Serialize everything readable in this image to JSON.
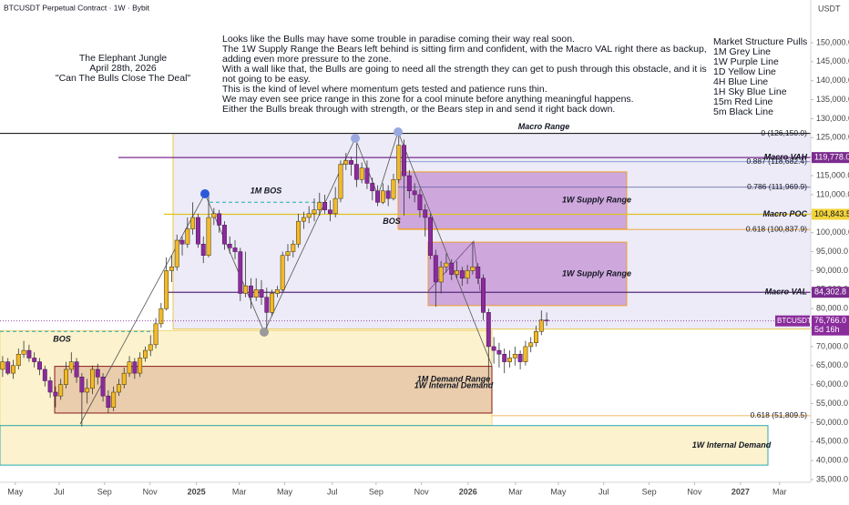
{
  "chart_data": {
    "type": "candlestick",
    "header": "BTCUSDT Perpetual Contract · 1W · Bybit",
    "currency": "USDT",
    "title_block": [
      "The Elephant Jungle",
      "April 28th, 2026",
      "\"Can The Bulls Close The Deal\""
    ],
    "commentary": [
      "Looks like the Bulls may have some trouble in paradise coming their way real soon.",
      "The 1W Supply Range the Bears left behind is sitting firm and confident, with the Macro VAL right there as backup,",
      "adding even more pressure to the zone.",
      "With a wall like that, the Bulls are going to need all the strength they can get to push through this obstacle, and it is",
      "not going to be easy.",
      "This is the kind of level where momentum gets tested and patience runs thin.",
      "We may even see price range in this zone for a cool minute before anything meaningful happens.",
      "Either the Bulls break through with strength, or the Bears step in and send it right back down."
    ],
    "legend_block": [
      "Market Structure Pulls",
      "1M Grey Line",
      "1W Purple Line",
      "1D Yellow Line",
      "4H Blue Line",
      "1H Sky Blue Line",
      "15m Red Line",
      "5m Black Line"
    ],
    "up_color": "#f2b92a",
    "down_color": "#8a2c9c",
    "xlim": [
      -0.5,
      153
    ],
    "xticks": [
      {
        "value": 2.4,
        "label": "May"
      },
      {
        "value": 10.7,
        "label": "Jul"
      },
      {
        "value": 19.3,
        "label": "Sep"
      },
      {
        "value": 27.9,
        "label": "Nov"
      },
      {
        "value": 36.7,
        "label": "2025"
      },
      {
        "value": 44.8,
        "label": "Mar"
      },
      {
        "value": 53.4,
        "label": "May"
      },
      {
        "value": 62.4,
        "label": "Jul"
      },
      {
        "value": 70.7,
        "label": "Sep"
      },
      {
        "value": 79.3,
        "label": "Nov"
      },
      {
        "value": 88.1,
        "label": "2026"
      },
      {
        "value": 97.1,
        "label": "Mar"
      },
      {
        "value": 105.2,
        "label": "May"
      },
      {
        "value": 113.8,
        "label": "Jul"
      },
      {
        "value": 122.4,
        "label": "Sep"
      },
      {
        "value": 131,
        "label": "Nov"
      },
      {
        "value": 139.7,
        "label": "2027"
      },
      {
        "value": 147.1,
        "label": "Mar"
      }
    ],
    "ylim": [
      30000,
      160000
    ],
    "yticks": [
      {
        "value": 150000,
        "label": "150,000.0"
      },
      {
        "value": 145000,
        "label": "145,000.0"
      },
      {
        "value": 140000,
        "label": "140,000.0"
      },
      {
        "value": 135000,
        "label": "135,000.0"
      },
      {
        "value": 130000,
        "label": "130,000.0"
      },
      {
        "value": 125000,
        "label": "125,000.0"
      },
      {
        "value": 120000,
        "label": "120,000.0"
      },
      {
        "value": 115000,
        "label": "115,000.0"
      },
      {
        "value": 110000,
        "label": "110,000.0"
      },
      {
        "value": 105000,
        "label": "105,000.0"
      },
      {
        "value": 100000,
        "label": "100,000.0"
      },
      {
        "value": 95000,
        "label": "95,000.0"
      },
      {
        "value": 90000,
        "label": "90,000.0"
      },
      {
        "value": 85000,
        "label": "85,000.0"
      },
      {
        "value": 80000,
        "label": "80,000.0"
      },
      {
        "value": 75000,
        "label": "75,000.0"
      },
      {
        "value": 70000,
        "label": "70,000.0"
      },
      {
        "value": 65000,
        "label": "65,000.0"
      },
      {
        "value": 60000,
        "label": "60,000.0"
      },
      {
        "value": 55000,
        "label": "55,000.0"
      },
      {
        "value": 50000,
        "label": "50,000.0"
      },
      {
        "value": 45000,
        "label": "45,000.0"
      },
      {
        "value": 40000,
        "label": "40,000.0"
      },
      {
        "value": 35000,
        "label": "35,000.0"
      }
    ],
    "candles": [
      [
        64000,
        67500,
        62000,
        66000
      ],
      [
        66000,
        67000,
        62500,
        63000
      ],
      [
        63000,
        66500,
        61500,
        65000
      ],
      [
        65000,
        69500,
        64000,
        68000
      ],
      [
        68000,
        71500,
        67000,
        69000
      ],
      [
        69000,
        70500,
        66000,
        67000
      ],
      [
        67000,
        68500,
        64500,
        66000
      ],
      [
        66000,
        67000,
        62500,
        64000
      ],
      [
        64000,
        65000,
        59500,
        61000
      ],
      [
        61000,
        62000,
        56500,
        58000
      ],
      [
        58000,
        59500,
        54000,
        57000
      ],
      [
        57000,
        61500,
        56000,
        60000
      ],
      [
        60000,
        66000,
        59000,
        64000
      ],
      [
        64000,
        68500,
        63000,
        66000
      ],
      [
        66000,
        67000,
        60500,
        62000
      ],
      [
        62000,
        63000,
        49000,
        58000
      ],
      [
        58000,
        61500,
        55000,
        59000
      ],
      [
        59000,
        65000,
        57500,
        64000
      ],
      [
        64000,
        65500,
        60000,
        62000
      ],
      [
        62000,
        63000,
        55500,
        57000
      ],
      [
        57000,
        58500,
        52500,
        54000
      ],
      [
        54000,
        59500,
        53000,
        58000
      ],
      [
        58000,
        61500,
        57000,
        60000
      ],
      [
        60000,
        64500,
        59000,
        63000
      ],
      [
        63000,
        67500,
        62000,
        66000
      ],
      [
        66000,
        67000,
        61500,
        63000
      ],
      [
        63000,
        68500,
        62000,
        67000
      ],
      [
        67000,
        70000,
        66000,
        69000
      ],
      [
        69000,
        73000,
        67500,
        70500
      ],
      [
        70500,
        77500,
        69500,
        76000
      ],
      [
        76000,
        81500,
        75000,
        80000
      ],
      [
        80000,
        93500,
        79500,
        90000
      ],
      [
        90000,
        94000,
        87000,
        91000
      ],
      [
        91000,
        99500,
        90000,
        98000
      ],
      [
        98000,
        99000,
        94000,
        97000
      ],
      [
        97000,
        104000,
        96000,
        101000
      ],
      [
        101000,
        108000,
        99500,
        104000
      ],
      [
        104000,
        105000,
        96000,
        97000
      ],
      [
        97000,
        99000,
        92000,
        94000
      ],
      [
        94000,
        109500,
        93500,
        104000
      ],
      [
        104000,
        106500,
        102000,
        105000
      ],
      [
        105000,
        106000,
        100000,
        102000
      ],
      [
        102000,
        103000,
        95500,
        97000
      ],
      [
        97000,
        99000,
        94500,
        96000
      ],
      [
        96000,
        98000,
        93000,
        95000
      ],
      [
        95000,
        96000,
        82000,
        84000
      ],
      [
        84000,
        95000,
        83000,
        86000
      ],
      [
        86000,
        88000,
        80000,
        83000
      ],
      [
        83000,
        88000,
        82000,
        85000
      ],
      [
        85000,
        87500,
        81000,
        83000
      ],
      [
        83000,
        85500,
        74500,
        79000
      ],
      [
        79000,
        85000,
        78000,
        84000
      ],
      [
        84000,
        86000,
        83000,
        85000
      ],
      [
        85000,
        95000,
        84500,
        94000
      ],
      [
        94000,
        97000,
        92500,
        95000
      ],
      [
        95000,
        98000,
        93500,
        97000
      ],
      [
        97000,
        105000,
        96000,
        103000
      ],
      [
        103000,
        105500,
        101000,
        104000
      ],
      [
        104000,
        107000,
        102500,
        105000
      ],
      [
        105000,
        109000,
        103000,
        106000
      ],
      [
        106000,
        110500,
        104500,
        108000
      ],
      [
        108000,
        110000,
        105000,
        106000
      ],
      [
        106000,
        108500,
        103000,
        105000
      ],
      [
        105000,
        112000,
        104000,
        109000
      ],
      [
        109000,
        119000,
        108000,
        118000
      ],
      [
        118000,
        121000,
        116500,
        119000
      ],
      [
        119000,
        120000,
        115000,
        118000
      ],
      [
        118000,
        123500,
        112000,
        114000
      ],
      [
        114000,
        118500,
        113000,
        117000
      ],
      [
        117000,
        119000,
        111500,
        113000
      ],
      [
        113000,
        114500,
        108500,
        111000
      ],
      [
        111000,
        112500,
        107000,
        108000
      ],
      [
        108000,
        113000,
        107500,
        111000
      ],
      [
        111000,
        112500,
        107000,
        109000
      ],
      [
        109000,
        115500,
        108500,
        114000
      ],
      [
        114000,
        126150,
        113000,
        123000
      ],
      [
        123000,
        124500,
        104500,
        115000
      ],
      [
        115000,
        116500,
        109000,
        111000
      ],
      [
        111000,
        113000,
        108000,
        110000
      ],
      [
        110000,
        111500,
        104000,
        106000
      ],
      [
        106000,
        107500,
        99000,
        104000
      ],
      [
        104000,
        105000,
        93000,
        94000
      ],
      [
        94000,
        95500,
        80500,
        87000
      ],
      [
        87000,
        92500,
        84000,
        91000
      ],
      [
        91000,
        94500,
        89500,
        92000
      ],
      [
        92000,
        93000,
        87500,
        89000
      ],
      [
        89000,
        92500,
        88000,
        90000
      ],
      [
        90000,
        91000,
        86000,
        88000
      ],
      [
        88000,
        91500,
        86500,
        90000
      ],
      [
        90000,
        97500,
        89000,
        91000
      ],
      [
        91000,
        92000,
        86500,
        88000
      ],
      [
        88000,
        89000,
        77000,
        79000
      ],
      [
        79000,
        80000,
        60000,
        70000
      ],
      [
        70000,
        72500,
        65500,
        69000
      ],
      [
        69000,
        71000,
        64500,
        68000
      ],
      [
        68000,
        69500,
        63000,
        66000
      ],
      [
        66000,
        69000,
        64500,
        67000
      ],
      [
        67000,
        70000,
        65000,
        68000
      ],
      [
        68000,
        69000,
        64000,
        66000
      ],
      [
        66000,
        71500,
        65000,
        70000
      ],
      [
        70000,
        72500,
        68500,
        71000
      ],
      [
        71000,
        75500,
        70000,
        74000
      ],
      [
        74000,
        79500,
        73000,
        77000
      ],
      [
        77000,
        79000,
        75500,
        76766
      ]
    ],
    "zones": [
      {
        "top": 74200,
        "bottom": 49200,
        "color": "#fbf1c6",
        "border": "#f3d77a"
      },
      {
        "top": 126150,
        "bottom": 74600,
        "color": "#e9e7f6",
        "border": "#e8c94a",
        "label": "Macro Range"
      },
      {
        "top": 116000,
        "bottom": 101000,
        "color": "#c99bd8",
        "border": "#f0a030",
        "label": "1W Supply Range"
      },
      {
        "top": 97500,
        "bottom": 80800,
        "color": "#c99bd8",
        "border": "#f0a030",
        "label": "1W Supply Range"
      },
      {
        "top": 64800,
        "bottom": 52500,
        "color": "#e6c6a6",
        "border": "#8b1a1a",
        "label": "1M Demand Range",
        "label2": "1W Internal Demand"
      },
      {
        "top": 49200,
        "bottom": 38800,
        "color": "#fbf1c6",
        "border": "#2aa8b0",
        "label": "1W Internal Demand"
      }
    ],
    "levels": [
      {
        "label": "0 (126,150.0)",
        "price": 126150,
        "color": "#222222"
      },
      {
        "label": "Macro VAH",
        "price": 119778,
        "color": "#7b2b8f"
      },
      {
        "label": "0.887 (118,682.4)",
        "price": 118682.4,
        "color": "#6b7fd0"
      },
      {
        "label": "0.786 (111,969.9)",
        "price": 111969.9,
        "color": "#5b5ba0"
      },
      {
        "label": "Macro POC",
        "price": 104843.5,
        "color": "#e0c020"
      },
      {
        "label": "0.618 (100,837.9)",
        "price": 100837.9,
        "color": "#f0a030"
      },
      {
        "label": "Macro VAL",
        "price": 84302.8,
        "color": "#5a2a7a"
      },
      {
        "label": "0.618 (51,809.5)",
        "price": 51809.5,
        "color": "#f0a030"
      }
    ],
    "structure_labels": [
      {
        "label": "1M BOS",
        "price": 108000
      },
      {
        "label": "BOS",
        "price": 74000
      },
      {
        "label": "BOS",
        "price": 104800
      }
    ],
    "price_labels": [
      {
        "label": "119,778.0",
        "price": 119778,
        "color": "#7b2b8f"
      },
      {
        "label": "104,843.5",
        "price": 104843.5,
        "color": "#f2d43a"
      },
      {
        "label": "84,302.8",
        "price": 84302.8,
        "color": "#7b2b8f"
      }
    ],
    "current": {
      "symbol": "BTCUSDT.P",
      "label": "76,766.0",
      "price": 76766,
      "countdown": "5d 16h",
      "color": "#8a2c9c"
    }
  }
}
